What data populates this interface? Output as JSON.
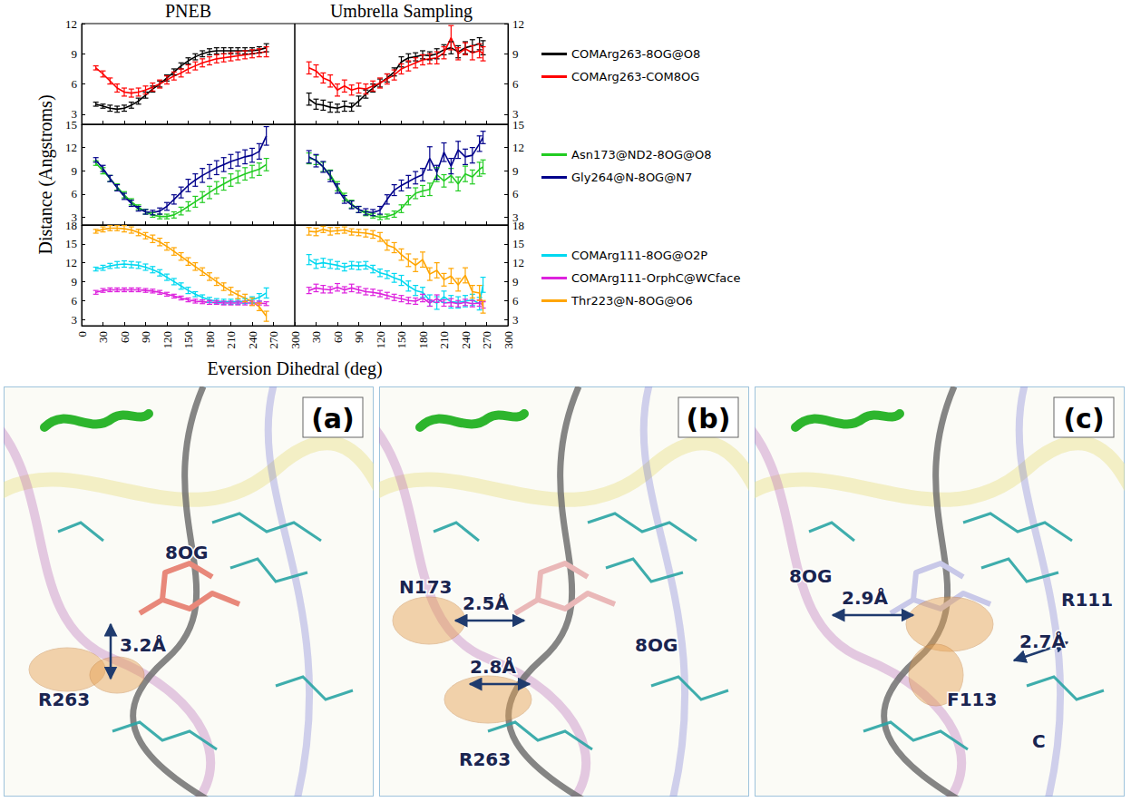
{
  "axis_titles": {
    "x": "Eversion Dihedral (deg)",
    "y": "Distance (Angstroms)"
  },
  "chart_data": [
    {
      "type": "line",
      "title": "PNEB",
      "x": [
        20,
        30,
        40,
        50,
        60,
        70,
        80,
        90,
        100,
        110,
        120,
        130,
        140,
        150,
        160,
        170,
        180,
        190,
        200,
        210,
        220,
        230,
        240,
        250,
        260
      ],
      "xlim": [
        0,
        300
      ],
      "xticks": [
        0,
        30,
        60,
        90,
        120,
        150,
        180,
        210,
        240,
        270,
        300
      ],
      "ylim": [
        2,
        12
      ],
      "yticks": [
        3,
        6,
        9,
        12
      ],
      "tick_labels": "y",
      "series": [
        {
          "name": "COMArg263-8OG@O8",
          "color": "#000000",
          "values": [
            4.0,
            3.8,
            3.6,
            3.5,
            3.6,
            3.9,
            4.3,
            4.9,
            5.5,
            6.0,
            6.6,
            7.2,
            7.8,
            8.3,
            8.7,
            9.0,
            9.2,
            9.3,
            9.3,
            9.3,
            9.3,
            9.3,
            9.3,
            9.4,
            9.6
          ],
          "errors": [
            0.2,
            0.2,
            0.3,
            0.3,
            0.3,
            0.3,
            0.3,
            0.3,
            0.3,
            0.3,
            0.3,
            0.3,
            0.3,
            0.3,
            0.3,
            0.3,
            0.3,
            0.3,
            0.3,
            0.3,
            0.3,
            0.3,
            0.3,
            0.3,
            0.4
          ]
        },
        {
          "name": "COMArg263-COM8OG",
          "color": "#ff0000",
          "values": [
            7.6,
            7.0,
            6.3,
            5.6,
            5.2,
            5.1,
            5.2,
            5.4,
            5.7,
            6.0,
            6.4,
            6.8,
            7.1,
            7.5,
            7.8,
            8.1,
            8.3,
            8.5,
            8.6,
            8.7,
            8.8,
            8.9,
            9.0,
            9.1,
            9.2
          ],
          "errors": [
            0.2,
            0.3,
            0.3,
            0.4,
            0.4,
            0.4,
            0.4,
            0.4,
            0.4,
            0.4,
            0.4,
            0.4,
            0.4,
            0.4,
            0.4,
            0.4,
            0.4,
            0.4,
            0.4,
            0.4,
            0.4,
            0.4,
            0.4,
            0.4,
            0.5
          ]
        }
      ]
    },
    {
      "type": "line",
      "title": "Umbrella Sampling",
      "x": [
        20,
        30,
        40,
        50,
        60,
        70,
        80,
        90,
        100,
        110,
        120,
        130,
        140,
        150,
        160,
        170,
        180,
        190,
        200,
        210,
        220,
        230,
        240,
        250,
        260,
        265
      ],
      "xlim": [
        0,
        300
      ],
      "xticks": [
        30,
        60,
        90,
        120,
        150,
        180,
        210,
        240,
        270,
        300
      ],
      "ylim": [
        2,
        12
      ],
      "yticks": [
        3,
        6,
        9,
        12
      ],
      "tick_labels": "y",
      "legend": "right",
      "series": [
        {
          "name": "COMArg263-8OG@O8",
          "color": "#000000",
          "values": [
            4.5,
            4.0,
            3.9,
            3.7,
            3.6,
            3.8,
            3.7,
            4.3,
            5.0,
            5.6,
            6.1,
            6.6,
            7.2,
            8.2,
            8.6,
            8.7,
            8.9,
            8.8,
            9.0,
            9.4,
            9.6,
            9.2,
            9.6,
            9.8,
            10.0,
            9.6
          ],
          "errors": [
            0.6,
            0.5,
            0.5,
            0.5,
            0.4,
            0.5,
            0.4,
            0.5,
            0.4,
            0.4,
            0.4,
            0.4,
            0.4,
            0.5,
            0.4,
            0.4,
            0.4,
            0.4,
            0.5,
            0.5,
            0.6,
            0.6,
            0.6,
            0.6,
            0.6,
            0.7
          ]
        },
        {
          "name": "COMArg263-COM8OG",
          "color": "#ff0000",
          "values": [
            7.6,
            7.3,
            6.6,
            6.3,
            5.4,
            5.8,
            5.4,
            5.6,
            5.5,
            5.8,
            6.1,
            6.5,
            6.9,
            7.5,
            7.8,
            8.1,
            8.4,
            8.5,
            8.6,
            9.1,
            10.6,
            9.0,
            9.5,
            9.1,
            9.3,
            9.0
          ],
          "errors": [
            0.6,
            0.6,
            0.5,
            0.6,
            0.6,
            0.6,
            0.5,
            0.5,
            0.5,
            0.5,
            0.5,
            0.5,
            0.5,
            0.5,
            0.5,
            0.5,
            0.5,
            0.5,
            0.6,
            0.6,
            1.2,
            0.6,
            0.6,
            0.7,
            0.7,
            0.7
          ]
        }
      ]
    },
    {
      "type": "line",
      "x": [
        20,
        30,
        40,
        50,
        60,
        70,
        80,
        90,
        100,
        110,
        120,
        130,
        140,
        150,
        160,
        170,
        180,
        190,
        200,
        210,
        220,
        230,
        240,
        250,
        260
      ],
      "xlim": [
        0,
        300
      ],
      "xticks": [
        0,
        30,
        60,
        90,
        120,
        150,
        180,
        210,
        240,
        270,
        300
      ],
      "ylim": [
        2,
        15
      ],
      "yticks": [
        3,
        6,
        9,
        12,
        15
      ],
      "tick_labels": "y",
      "series": [
        {
          "name": "Asn173@ND2-8OG@O8",
          "color": "#22cc22",
          "values": [
            10.0,
            9.0,
            8.0,
            6.9,
            5.9,
            5.0,
            4.3,
            3.7,
            3.3,
            3.1,
            3.1,
            3.3,
            3.8,
            4.4,
            5.0,
            5.6,
            6.2,
            6.8,
            7.3,
            7.8,
            8.2,
            8.6,
            8.9,
            9.2,
            9.8
          ],
          "errors": [
            0.3,
            0.4,
            0.4,
            0.4,
            0.4,
            0.4,
            0.3,
            0.3,
            0.3,
            0.3,
            0.3,
            0.4,
            0.5,
            0.6,
            0.7,
            0.7,
            0.8,
            0.8,
            0.8,
            0.8,
            0.8,
            0.8,
            0.8,
            0.8,
            0.8
          ]
        },
        {
          "name": "Gly264@N-8OG@N7",
          "color": "#00008b",
          "values": [
            10.4,
            9.3,
            8.0,
            6.8,
            5.7,
            4.8,
            4.1,
            3.7,
            3.6,
            3.8,
            4.4,
            5.3,
            6.2,
            7.1,
            7.8,
            8.4,
            8.9,
            9.4,
            9.8,
            10.2,
            10.5,
            10.8,
            11.0,
            11.5,
            13.5
          ],
          "errors": [
            0.3,
            0.4,
            0.4,
            0.4,
            0.4,
            0.4,
            0.3,
            0.3,
            0.3,
            0.4,
            0.5,
            0.6,
            0.7,
            0.8,
            0.8,
            0.9,
            0.9,
            0.9,
            0.9,
            0.9,
            0.9,
            0.9,
            0.9,
            1.0,
            1.2
          ]
        }
      ]
    },
    {
      "type": "line",
      "x": [
        20,
        30,
        40,
        50,
        60,
        70,
        80,
        90,
        100,
        110,
        120,
        130,
        140,
        150,
        160,
        170,
        180,
        190,
        200,
        210,
        220,
        230,
        240,
        250,
        260,
        265
      ],
      "xlim": [
        0,
        300
      ],
      "xticks": [
        30,
        60,
        90,
        120,
        150,
        180,
        210,
        240,
        270,
        300
      ],
      "ylim": [
        2,
        15
      ],
      "yticks": [
        3,
        6,
        9,
        12,
        15
      ],
      "tick_labels": "y",
      "legend": "right",
      "series": [
        {
          "name": "Asn173@ND2-8OG@O8",
          "color": "#22cc22",
          "values": [
            10.6,
            10.4,
            9.5,
            8.5,
            7.0,
            5.6,
            4.7,
            4.0,
            3.5,
            3.2,
            3.0,
            3.1,
            3.4,
            4.1,
            5.2,
            6.1,
            6.4,
            6.6,
            8.5,
            7.7,
            8.4,
            7.3,
            8.6,
            8.2,
            9.2,
            9.5
          ],
          "errors": [
            0.7,
            0.6,
            0.6,
            0.6,
            0.6,
            0.5,
            0.5,
            0.4,
            0.3,
            0.3,
            0.3,
            0.3,
            0.4,
            0.5,
            0.6,
            0.7,
            0.7,
            0.8,
            0.9,
            0.8,
            0.9,
            0.9,
            1.0,
            0.9,
            0.9,
            0.9
          ]
        },
        {
          "name": "Gly264@N-8OG@N7",
          "color": "#00008b",
          "values": [
            10.8,
            10.3,
            9.5,
            8.3,
            6.7,
            5.3,
            4.6,
            4.0,
            3.7,
            3.6,
            3.9,
            5.3,
            6.5,
            7.1,
            7.6,
            8.1,
            8.5,
            10.6,
            8.8,
            11.4,
            9.6,
            11.7,
            10.8,
            11.0,
            12.5,
            13.3
          ],
          "errors": [
            0.8,
            0.8,
            0.7,
            0.7,
            0.6,
            0.5,
            0.5,
            0.4,
            0.4,
            0.4,
            0.5,
            0.6,
            0.7,
            0.7,
            0.8,
            0.8,
            0.8,
            1.5,
            0.9,
            1.2,
            1.0,
            1.1,
            1.0,
            1.0,
            1.0,
            0.8
          ]
        }
      ]
    },
    {
      "type": "line",
      "x": [
        20,
        30,
        40,
        50,
        60,
        70,
        80,
        90,
        100,
        110,
        120,
        130,
        140,
        150,
        160,
        170,
        180,
        190,
        200,
        210,
        220,
        230,
        240,
        250,
        260
      ],
      "xlim": [
        0,
        300
      ],
      "xticks": [
        0,
        30,
        60,
        90,
        120,
        150,
        180,
        210,
        240,
        270,
        300
      ],
      "ylim": [
        2,
        18
      ],
      "yticks": [
        3,
        6,
        9,
        12,
        15,
        18
      ],
      "tick_labels": true,
      "series": [
        {
          "name": "COMArg111-8OG@O2P",
          "color": "#00d8f0",
          "values": [
            11.0,
            11.2,
            11.5,
            11.7,
            11.8,
            11.7,
            11.6,
            11.3,
            10.9,
            10.4,
            9.7,
            9.0,
            8.3,
            7.6,
            7.0,
            6.5,
            6.1,
            5.9,
            5.8,
            5.8,
            5.8,
            5.9,
            6.1,
            6.5,
            7.2
          ],
          "errors": [
            0.3,
            0.4,
            0.4,
            0.5,
            0.5,
            0.5,
            0.5,
            0.5,
            0.5,
            0.5,
            0.5,
            0.5,
            0.5,
            0.5,
            0.4,
            0.4,
            0.4,
            0.4,
            0.4,
            0.4,
            0.4,
            0.4,
            0.5,
            0.6,
            0.8
          ]
        },
        {
          "name": "COMArg111-OrphC@WCface",
          "color": "#dd22dd",
          "values": [
            7.3,
            7.6,
            7.7,
            7.7,
            7.7,
            7.7,
            7.7,
            7.6,
            7.5,
            7.3,
            7.0,
            6.7,
            6.4,
            6.1,
            5.9,
            5.8,
            5.7,
            5.7,
            5.6,
            5.6,
            5.6,
            5.6,
            5.6,
            5.6,
            5.5
          ],
          "errors": [
            0.3,
            0.3,
            0.3,
            0.3,
            0.3,
            0.3,
            0.3,
            0.3,
            0.3,
            0.3,
            0.3,
            0.3,
            0.3,
            0.3,
            0.3,
            0.3,
            0.3,
            0.3,
            0.3,
            0.3,
            0.3,
            0.3,
            0.3,
            0.3,
            0.3
          ]
        },
        {
          "name": "Thr223@N-8OG@O6",
          "color": "#ffa500",
          "values": [
            17.0,
            17.3,
            17.5,
            17.5,
            17.4,
            17.2,
            16.8,
            16.3,
            15.8,
            15.3,
            14.6,
            13.8,
            13.0,
            12.2,
            11.4,
            10.6,
            9.8,
            9.0,
            8.2,
            7.5,
            6.9,
            6.4,
            5.8,
            5.0,
            3.5
          ],
          "errors": [
            0.3,
            0.4,
            0.4,
            0.4,
            0.5,
            0.5,
            0.5,
            0.5,
            0.6,
            0.6,
            0.6,
            0.6,
            0.6,
            0.6,
            0.6,
            0.6,
            0.6,
            0.6,
            0.6,
            0.6,
            0.6,
            0.6,
            0.6,
            0.6,
            0.8
          ]
        }
      ]
    },
    {
      "type": "line",
      "x": [
        20,
        30,
        40,
        50,
        60,
        70,
        80,
        90,
        100,
        110,
        120,
        130,
        140,
        150,
        160,
        170,
        180,
        190,
        200,
        210,
        220,
        230,
        240,
        250,
        260,
        265
      ],
      "xlim": [
        0,
        300
      ],
      "xticks": [
        30,
        60,
        90,
        120,
        150,
        180,
        210,
        240,
        270,
        300
      ],
      "ylim": [
        2,
        18
      ],
      "yticks": [
        3,
        6,
        9,
        12,
        15,
        18
      ],
      "tick_labels": true,
      "legend": "right",
      "series": [
        {
          "name": "COMArg111-8OG@O2P",
          "color": "#00d8f0",
          "values": [
            12.5,
            11.8,
            12.0,
            11.8,
            11.6,
            11.3,
            11.6,
            11.5,
            11.6,
            11.0,
            10.4,
            10.1,
            9.6,
            9.2,
            8.3,
            7.6,
            7.3,
            6.0,
            5.6,
            6.6,
            5.8,
            5.7,
            5.9,
            6.1,
            5.5,
            8.5
          ],
          "errors": [
            0.8,
            0.7,
            0.7,
            0.7,
            0.6,
            0.6,
            0.6,
            0.6,
            0.6,
            0.6,
            0.6,
            0.6,
            0.7,
            0.8,
            0.8,
            0.8,
            0.8,
            0.9,
            1.0,
            0.9,
            1.0,
            0.9,
            0.9,
            0.9,
            1.0,
            1.2
          ]
        },
        {
          "name": "COMArg111-OrphC@WCface",
          "color": "#dd22dd",
          "values": [
            7.6,
            8.0,
            7.8,
            7.7,
            8.1,
            7.7,
            8.0,
            7.7,
            7.4,
            7.3,
            7.1,
            6.8,
            6.5,
            6.3,
            6.0,
            5.9,
            6.4,
            5.6,
            6.3,
            5.6,
            5.7,
            5.5,
            5.7,
            5.5,
            5.6,
            5.3
          ],
          "errors": [
            0.5,
            0.6,
            0.6,
            0.5,
            0.6,
            0.5,
            0.6,
            0.5,
            0.5,
            0.5,
            0.5,
            0.5,
            0.5,
            0.5,
            0.5,
            0.5,
            0.6,
            0.5,
            0.6,
            0.5,
            0.6,
            0.5,
            0.5,
            0.5,
            0.5,
            0.5
          ]
        },
        {
          "name": "Thr223@N-8OG@O6",
          "color": "#ffa500",
          "values": [
            17.0,
            16.9,
            17.3,
            17.0,
            17.1,
            17.2,
            16.9,
            16.8,
            16.7,
            16.5,
            16.1,
            14.8,
            14.4,
            13.3,
            12.4,
            11.6,
            12.5,
            10.2,
            10.8,
            9.3,
            9.9,
            8.5,
            10.0,
            7.4,
            7.2,
            5.0
          ],
          "errors": [
            0.6,
            0.6,
            0.5,
            0.6,
            0.5,
            0.5,
            0.5,
            0.5,
            0.6,
            0.6,
            0.7,
            0.8,
            0.8,
            0.9,
            1.0,
            1.0,
            1.2,
            1.0,
            1.2,
            1.0,
            1.2,
            1.0,
            1.2,
            1.0,
            1.2,
            1.0
          ]
        }
      ]
    }
  ],
  "panels": [
    {
      "letter": "(a)",
      "labels": [
        "8OG",
        "R263",
        "3.2Å"
      ]
    },
    {
      "letter": "(b)",
      "labels": [
        "N173",
        "2.5Å",
        "8OG",
        "2.8Å",
        "R263"
      ]
    },
    {
      "letter": "(c)",
      "labels": [
        "8OG",
        "2.9Å",
        "R111",
        "2.7Å",
        "F113",
        "C"
      ]
    }
  ]
}
